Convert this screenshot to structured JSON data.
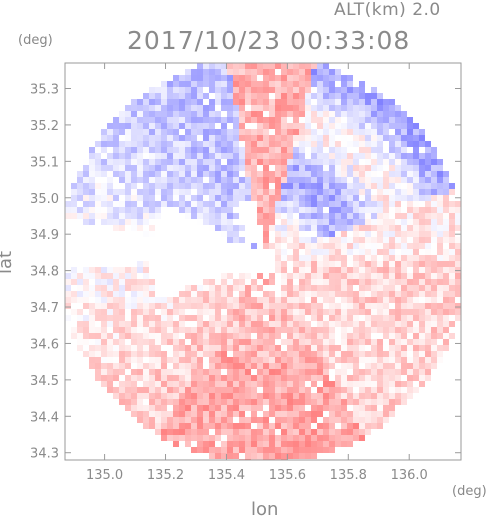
{
  "header": {
    "altitude": "ALT(km) 2.0",
    "title": "2017/10/23 00:33:08"
  },
  "chart_data": {
    "type": "heatmap",
    "title": "2017/10/23 00:33:08",
    "subtitle": "ALT(km) 2.0",
    "xlabel": "lon",
    "ylabel": "lat",
    "x_unit": "(deg)",
    "y_unit": "(deg)",
    "xlim": [
      134.87,
      136.17
    ],
    "ylim": [
      34.28,
      35.37
    ],
    "x_ticks": [
      "135.0",
      "135.2",
      "135.4",
      "135.6",
      "135.8",
      "136.0"
    ],
    "y_ticks": [
      "34.3",
      "34.4",
      "34.5",
      "34.6",
      "34.7",
      "34.8",
      "34.9",
      "35.0",
      "35.1",
      "35.2",
      "35.3"
    ],
    "radar_center": [
      135.52,
      34.83
    ],
    "radar_range_deg": 0.67,
    "colors": {
      "positive": "#ff8080",
      "negative": "#8080ff",
      "neutral": "#ffffff",
      "frame": "#9a9a9a"
    },
    "legend": "none",
    "grid": false
  }
}
